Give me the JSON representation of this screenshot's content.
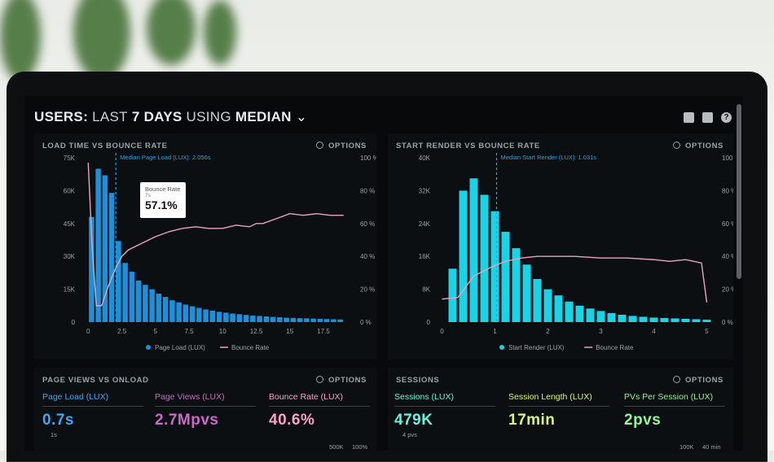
{
  "dashboard": {
    "title_bold_1": "USERS:",
    "title_light_1": "LAST",
    "title_bold_2": "7 DAYS",
    "title_light_2": "USING",
    "title_bold_3": "MEDIAN",
    "chevron": "⌄"
  },
  "header_icons": [
    "monitor-icon",
    "export-icon",
    "help-icon"
  ],
  "help_glyph": "?",
  "options_label": "OPTIONS",
  "panels": {
    "load": {
      "title": "LOAD TIME VS BOUNCE RATE",
      "median_label": "Median Page Load (LUX): 2.056s",
      "tooltip_title": "Bounce Rate",
      "tooltip_sub": "7s",
      "tooltip_value": "57.1%",
      "legend_bar": "Page Load (LUX)",
      "legend_line": "Bounce Rate"
    },
    "render": {
      "title": "START RENDER VS BOUNCE RATE",
      "median_label": "Median Start Render (LUX): 1.031s",
      "legend_bar": "Start Render (LUX)",
      "legend_line": "Bounce Rate"
    },
    "pageviews": {
      "title": "PAGE VIEWS VS ONLOAD",
      "stats": [
        {
          "label": "Page Load (LUX)",
          "value": "0.7s",
          "sub": "1s",
          "color": "#3fa8f0"
        },
        {
          "label": "Page Views (LUX)",
          "value": "2.7Mpvs",
          "sub": "",
          "color": "#c86bc4"
        },
        {
          "label": "Bounce Rate (LUX)",
          "value": "40.6%",
          "sub": "",
          "color": "#f5a3c7"
        }
      ],
      "axis_right_1": "500K",
      "axis_right_2": "100%"
    },
    "sessions": {
      "title": "SESSIONS",
      "stats": [
        {
          "label": "Sessions (LUX)",
          "value": "479K",
          "sub": "4 pvs",
          "color": "#6ff0dc"
        },
        {
          "label": "Session Length (LUX)",
          "value": "17min",
          "sub": "",
          "color": "#d7f582"
        },
        {
          "label": "PVs Per Session (LUX)",
          "value": "2pvs",
          "sub": "",
          "color": "#9af59a"
        }
      ],
      "axis_right_1": "100K",
      "axis_right_2": "40 min"
    }
  },
  "colors": {
    "bar_blue": "#1e8fd9",
    "bar_cyan": "#19d3e6",
    "line_pink": "#e8a6bb",
    "median_line": "#2aa3e0"
  },
  "chart_data": [
    {
      "type": "bar",
      "title": "LOAD TIME VS BOUNCE RATE",
      "x_tick_labels": [
        "0",
        "2.5",
        "5",
        "7.5",
        "10",
        "12.5",
        "15",
        "17.5"
      ],
      "y_left_ticks": [
        "0",
        "15K",
        "30K",
        "45K",
        "60K",
        "75K"
      ],
      "y_right_ticks": [
        "0 %",
        "20 %",
        "40 %",
        "60 %",
        "80 %",
        "100 %"
      ],
      "xlim": [
        -0.5,
        19.5
      ],
      "ylim": [
        0,
        75000
      ],
      "y2lim": [
        0,
        100
      ],
      "series": [
        {
          "name": "Page Load (LUX)",
          "type": "bar",
          "x": [
            0.25,
            0.75,
            1.25,
            1.75,
            2.25,
            2.75,
            3.25,
            3.75,
            4.25,
            4.75,
            5.25,
            5.75,
            6.25,
            6.75,
            7.25,
            7.75,
            8.25,
            8.75,
            9.25,
            9.75,
            10.25,
            10.75,
            11.25,
            11.75,
            12.25,
            12.75,
            13.25,
            13.75,
            14.25,
            14.75,
            15.25,
            15.75,
            16.25,
            16.75,
            17.25,
            17.75,
            18.25,
            18.75
          ],
          "values": [
            48000,
            70000,
            67000,
            59000,
            37000,
            27000,
            23000,
            19000,
            17000,
            15000,
            13000,
            11500,
            10000,
            9000,
            8000,
            7200,
            6500,
            5800,
            5200,
            4700,
            4300,
            3900,
            3600,
            3300,
            3000,
            2800,
            2600,
            2400,
            2200,
            2000,
            1900,
            1800,
            1700,
            1600,
            1500,
            1400,
            1300,
            1200
          ]
        },
        {
          "name": "Bounce Rate",
          "type": "line",
          "x": [
            0,
            0.3,
            0.6,
            1,
            1.5,
            2,
            2.5,
            3,
            4,
            5,
            6,
            7,
            8,
            9,
            10,
            11,
            12,
            12.5,
            13,
            14,
            15,
            16,
            17,
            18,
            19
          ],
          "values": [
            97,
            45,
            10,
            10,
            22,
            32,
            40,
            44,
            48,
            52,
            55,
            57,
            58,
            57,
            57,
            59,
            58,
            60,
            60,
            63,
            66,
            65,
            66,
            65,
            65
          ]
        }
      ],
      "median_x": 2.056
    },
    {
      "type": "bar",
      "title": "START RENDER VS BOUNCE RATE",
      "x_tick_labels": [
        "0",
        "1",
        "2",
        "3",
        "4",
        "5"
      ],
      "y_left_ticks": [
        "0",
        "8K",
        "16K",
        "24K",
        "32K",
        "40K"
      ],
      "y_right_ticks": [
        "0 %",
        "20 %",
        "40 %",
        "60 %",
        "80 %",
        "100 %"
      ],
      "xlim": [
        -0.1,
        5.1
      ],
      "ylim": [
        0,
        40000
      ],
      "y2lim": [
        0,
        100
      ],
      "series": [
        {
          "name": "Start Render (LUX)",
          "type": "bar",
          "x": [
            0.2,
            0.4,
            0.6,
            0.8,
            1.0,
            1.2,
            1.4,
            1.6,
            1.8,
            2.0,
            2.2,
            2.4,
            2.6,
            2.8,
            3.0,
            3.2,
            3.4,
            3.6,
            3.8,
            4.0,
            4.2,
            4.4,
            4.6,
            4.8,
            5.0
          ],
          "values": [
            13000,
            32000,
            35000,
            31000,
            27000,
            22000,
            18000,
            14000,
            10500,
            8000,
            6500,
            5000,
            4000,
            3300,
            2700,
            2200,
            1800,
            1500,
            1300,
            1100,
            1000,
            900,
            800,
            700,
            600
          ]
        },
        {
          "name": "Bounce Rate",
          "type": "line",
          "x": [
            0,
            0.3,
            0.6,
            0.9,
            1.2,
            1.5,
            1.8,
            2.1,
            2.5,
            3,
            3.5,
            4,
            4.3,
            4.6,
            4.9,
            5.0
          ],
          "values": [
            14,
            15,
            28,
            33,
            37,
            39,
            40,
            40,
            40,
            39,
            39,
            38,
            37,
            38,
            36,
            12
          ]
        }
      ],
      "median_x": 1.031
    }
  ]
}
